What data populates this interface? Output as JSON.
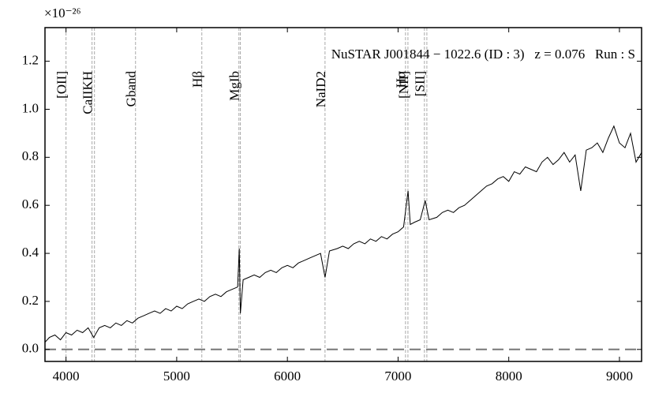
{
  "chart_data": {
    "type": "line",
    "title": "NuSTAR J001844 − 1022.6 (ID : 3)   z = 0.076   Run : S",
    "exponent_label": "×10⁻²⁶",
    "color": "#000000",
    "xlim": [
      3810,
      9200
    ],
    "xticks": [
      4000,
      5000,
      6000,
      7000,
      8000,
      9000
    ],
    "ylim": [
      -0.05,
      1.34
    ],
    "yticks": [
      {
        "value": 0,
        "label": "0.0"
      },
      0.2,
      0.4,
      0.6,
      0.8,
      {
        "value": 1,
        "label": "1.0"
      },
      1.2
    ],
    "zero_line": 0,
    "lines": [
      {
        "label": "[OII]",
        "x": 4000
      },
      {
        "label": "CaIIKH",
        "x": 4235
      },
      {
        "label": null,
        "x": 4257
      },
      {
        "label": "Gband",
        "x": 4628
      },
      {
        "label": "Hβ",
        "x": 5227
      },
      {
        "label": "MgIb",
        "x": 5562
      },
      {
        "label": null,
        "x": 5575
      },
      {
        "label": "NaID2",
        "x": 6340
      },
      {
        "label": "Hα",
        "x": 7067
      },
      {
        "label": "[NII]",
        "x": 7089
      },
      {
        "label": "[SII]",
        "x": 7238
      },
      {
        "label": null,
        "x": 7260
      }
    ],
    "x": [
      3810,
      3850,
      3900,
      3950,
      4000,
      4050,
      4100,
      4150,
      4200,
      4250,
      4300,
      4350,
      4400,
      4450,
      4500,
      4550,
      4600,
      4650,
      4700,
      4750,
      4800,
      4850,
      4900,
      4950,
      5000,
      5050,
      5100,
      5150,
      5200,
      5250,
      5300,
      5350,
      5400,
      5450,
      5500,
      5550,
      5565,
      5575,
      5600,
      5650,
      5700,
      5750,
      5800,
      5850,
      5900,
      5950,
      6000,
      6050,
      6100,
      6150,
      6200,
      6250,
      6300,
      6340,
      6380,
      6450,
      6500,
      6550,
      6600,
      6650,
      6700,
      6750,
      6800,
      6850,
      6900,
      6950,
      7000,
      7050,
      7090,
      7110,
      7150,
      7200,
      7245,
      7280,
      7350,
      7400,
      7450,
      7500,
      7550,
      7600,
      7650,
      7700,
      7750,
      7800,
      7850,
      7900,
      7950,
      8000,
      8050,
      8100,
      8150,
      8200,
      8250,
      8300,
      8350,
      8400,
      8450,
      8500,
      8550,
      8600,
      8650,
      8700,
      8750,
      8800,
      8850,
      8900,
      8950,
      9000,
      9050,
      9100,
      9150,
      9200
    ],
    "values": [
      0.03,
      0.05,
      0.06,
      0.04,
      0.07,
      0.06,
      0.08,
      0.07,
      0.09,
      0.05,
      0.09,
      0.1,
      0.09,
      0.11,
      0.1,
      0.12,
      0.11,
      0.13,
      0.14,
      0.15,
      0.16,
      0.15,
      0.17,
      0.16,
      0.18,
      0.17,
      0.19,
      0.2,
      0.21,
      0.2,
      0.22,
      0.23,
      0.22,
      0.24,
      0.25,
      0.26,
      0.42,
      0.15,
      0.29,
      0.3,
      0.31,
      0.3,
      0.32,
      0.33,
      0.32,
      0.34,
      0.35,
      0.34,
      0.36,
      0.37,
      0.38,
      0.39,
      0.4,
      0.3,
      0.41,
      0.42,
      0.43,
      0.42,
      0.44,
      0.45,
      0.44,
      0.46,
      0.45,
      0.47,
      0.46,
      0.48,
      0.49,
      0.51,
      0.66,
      0.52,
      0.53,
      0.54,
      0.62,
      0.54,
      0.55,
      0.57,
      0.58,
      0.57,
      0.59,
      0.6,
      0.62,
      0.64,
      0.66,
      0.68,
      0.69,
      0.71,
      0.72,
      0.7,
      0.74,
      0.73,
      0.76,
      0.75,
      0.74,
      0.78,
      0.8,
      0.77,
      0.79,
      0.82,
      0.78,
      0.81,
      0.66,
      0.83,
      0.84,
      0.86,
      0.82,
      0.88,
      0.93,
      0.86,
      0.84,
      0.9,
      0.78,
      0.82
    ]
  }
}
